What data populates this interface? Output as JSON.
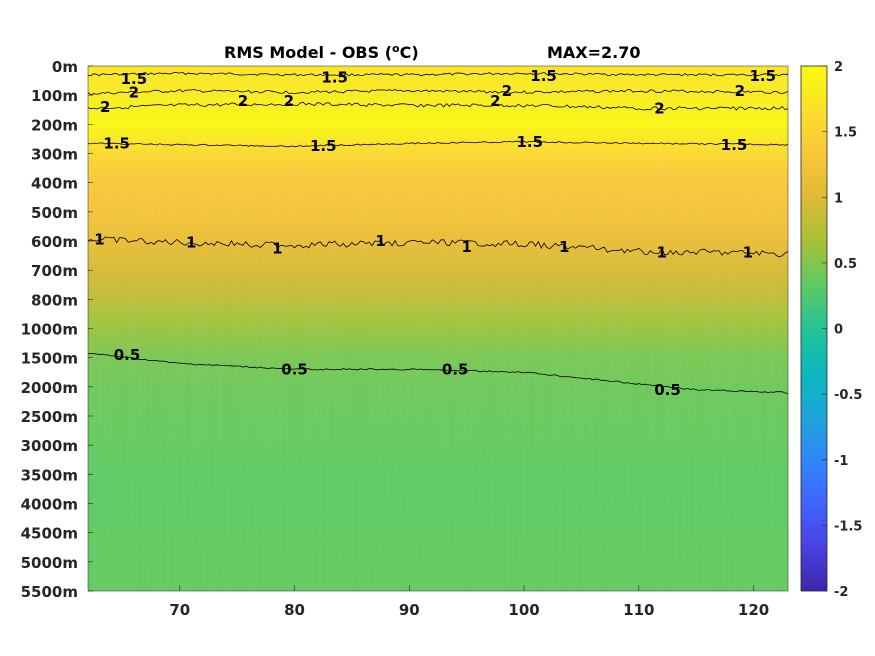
{
  "chart_data": {
    "type": "heatmap",
    "title_left": "RMS Model - OBS (",
    "title_sup": "o",
    "title_unit": "C)",
    "title_max": "MAX=2.70",
    "x_ticks": [
      70,
      80,
      90,
      100,
      110,
      120
    ],
    "x_range": [
      62,
      123
    ],
    "depth_labels": [
      "0m",
      "100m",
      "200m",
      "300m",
      "400m",
      "500m",
      "600m",
      "700m",
      "800m",
      "1000m",
      "1500m",
      "2000m",
      "2500m",
      "3000m",
      "3500m",
      "4000m",
      "4500m",
      "5000m",
      "5500m"
    ],
    "colorbar": {
      "range": [
        -2,
        2
      ],
      "ticks": [
        "2",
        "1.5",
        "1",
        "0.5",
        "0",
        "-0.5",
        "-1",
        "-1.5",
        "-2"
      ],
      "colors": [
        "#3e26a8",
        "#4742e2",
        "#4164fe",
        "#2e87f7",
        "#1fa4d9",
        "#0bb8bc",
        "#26c295",
        "#5fca62",
        "#a6c238",
        "#e0b935",
        "#fbc73a",
        "#f9e12a",
        "#f9fb0e"
      ]
    },
    "row_values": [
      1.7,
      1.8,
      1.95,
      1.55,
      1.3,
      1.25,
      1.1,
      0.95,
      0.8,
      0.6,
      0.45,
      0.4,
      0.38,
      0.35,
      0.33,
      0.33,
      0.34,
      0.35,
      0.35
    ],
    "contour_labels": [
      {
        "text": "1.5",
        "x": 66,
        "depth": 0.45
      },
      {
        "text": "1.5",
        "x": 83.5,
        "depth": 0.4
      },
      {
        "text": "1.5",
        "x": 101.7,
        "depth": 0.35
      },
      {
        "text": "1.5",
        "x": 120.8,
        "depth": 0.35
      },
      {
        "text": "2",
        "x": 66,
        "depth": 0.9
      },
      {
        "text": "2",
        "x": 63.5,
        "depth": 1.4
      },
      {
        "text": "2",
        "x": 75.5,
        "depth": 1.2
      },
      {
        "text": "2",
        "x": 79.5,
        "depth": 1.2
      },
      {
        "text": "2",
        "x": 97.5,
        "depth": 1.2
      },
      {
        "text": "2",
        "x": 98.5,
        "depth": 0.85
      },
      {
        "text": "2",
        "x": 111.8,
        "depth": 1.45
      },
      {
        "text": "2",
        "x": 118.8,
        "depth": 0.85
      },
      {
        "text": "1.5",
        "x": 64.5,
        "depth": 2.65
      },
      {
        "text": "1.5",
        "x": 82.5,
        "depth": 2.75
      },
      {
        "text": "1.5",
        "x": 100.5,
        "depth": 2.6
      },
      {
        "text": "1.5",
        "x": 118.3,
        "depth": 2.7
      },
      {
        "text": "1",
        "x": 63,
        "depth": 5.95
      },
      {
        "text": "1",
        "x": 71,
        "depth": 6.05
      },
      {
        "text": "1",
        "x": 78.5,
        "depth": 6.25
      },
      {
        "text": "1",
        "x": 87.5,
        "depth": 6.0
      },
      {
        "text": "1",
        "x": 95,
        "depth": 6.2
      },
      {
        "text": "1",
        "x": 103.5,
        "depth": 6.2
      },
      {
        "text": "1",
        "x": 112,
        "depth": 6.4
      },
      {
        "text": "1",
        "x": 119.5,
        "depth": 6.4
      },
      {
        "text": "0.5",
        "x": 65.4,
        "depth": 9.9
      },
      {
        "text": "0.5",
        "x": 80,
        "depth": 10.4
      },
      {
        "text": "0.5",
        "x": 94,
        "depth": 10.4
      },
      {
        "text": "0.5",
        "x": 112.5,
        "depth": 11.1
      }
    ],
    "contours": [
      {
        "level": 1.5,
        "points": [
          [
            62,
            0.3
          ],
          [
            70,
            0.25
          ],
          [
            80,
            0.3
          ],
          [
            90,
            0.3
          ],
          [
            100,
            0.25
          ],
          [
            110,
            0.3
          ],
          [
            123,
            0.3
          ]
        ],
        "noise": 0.08
      },
      {
        "level": 2,
        "points": [
          [
            62,
            0.95
          ],
          [
            70,
            0.85
          ],
          [
            80,
            0.9
          ],
          [
            90,
            0.85
          ],
          [
            100,
            0.9
          ],
          [
            110,
            0.85
          ],
          [
            123,
            0.9
          ]
        ],
        "noise": 0.1
      },
      {
        "level": 2,
        "points": [
          [
            62,
            1.45
          ],
          [
            70,
            1.35
          ],
          [
            80,
            1.3
          ],
          [
            90,
            1.35
          ],
          [
            100,
            1.35
          ],
          [
            110,
            1.45
          ],
          [
            123,
            1.45
          ]
        ],
        "noise": 0.12
      },
      {
        "level": 1.5,
        "points": [
          [
            62,
            2.65
          ],
          [
            70,
            2.7
          ],
          [
            80,
            2.75
          ],
          [
            90,
            2.65
          ],
          [
            100,
            2.6
          ],
          [
            110,
            2.65
          ],
          [
            123,
            2.7
          ]
        ],
        "noise": 0.05
      },
      {
        "level": 1,
        "points": [
          [
            62,
            5.95
          ],
          [
            70,
            6.05
          ],
          [
            80,
            6.15
          ],
          [
            90,
            6.05
          ],
          [
            100,
            6.1
          ],
          [
            110,
            6.35
          ],
          [
            123,
            6.45
          ]
        ],
        "noise": 0.22
      },
      {
        "level": 0.5,
        "points": [
          [
            62,
            9.85
          ],
          [
            70,
            10.2
          ],
          [
            80,
            10.4
          ],
          [
            90,
            10.4
          ],
          [
            100,
            10.5
          ],
          [
            110,
            10.9
          ],
          [
            115,
            11.1
          ],
          [
            123,
            11.2
          ]
        ],
        "noise": 0.05
      }
    ]
  }
}
